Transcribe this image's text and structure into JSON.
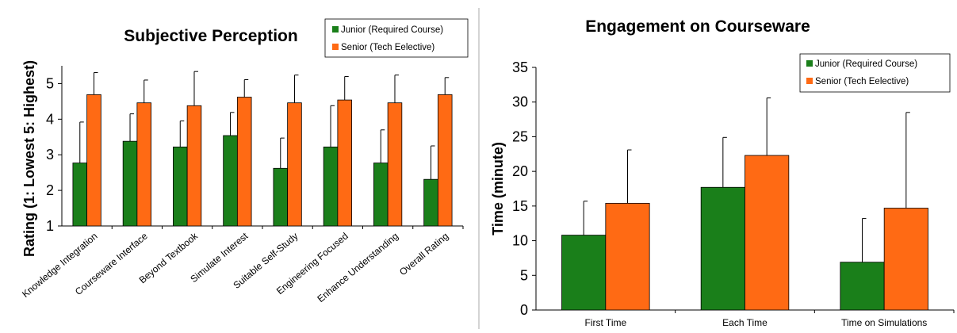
{
  "colors": {
    "junior": "#1a7f1a",
    "senior": "#ff6a14",
    "divider": "#aaaaaa"
  },
  "chart_data": [
    {
      "type": "bar",
      "title": "Subjective Perception",
      "ylabel": "Rating (1: Lowest 5: Highest)",
      "xlabel": "",
      "ylim": [
        1,
        5.5
      ],
      "yticks": [
        1,
        2,
        3,
        4,
        5
      ],
      "legend": "top-right",
      "categories": [
        "Knowledge Integration",
        "Courseware Interface",
        "Beyond Textbook",
        "Simulate Interest",
        "Suitable Self-Study",
        "Engineering Focused",
        "Enhance Understanding",
        "Overall Rating"
      ],
      "series": [
        {
          "name": "Junior (Required Course)",
          "values": [
            2.77,
            3.38,
            3.22,
            3.54,
            2.62,
            3.22,
            2.77,
            2.31
          ],
          "error": [
            1.15,
            0.77,
            0.73,
            0.65,
            0.85,
            1.16,
            0.93,
            0.94
          ]
        },
        {
          "name": "Senior (Tech Eelective)",
          "values": [
            4.69,
            4.46,
            4.38,
            4.62,
            4.46,
            4.54,
            4.46,
            4.69
          ],
          "error": [
            0.62,
            0.64,
            0.96,
            0.49,
            0.78,
            0.66,
            0.78,
            0.48
          ]
        }
      ]
    },
    {
      "type": "bar",
      "title": "Engagement on Courseware",
      "ylabel": "Time (minute)",
      "xlabel": "",
      "ylim": [
        0,
        35
      ],
      "yticks": [
        0,
        5,
        10,
        15,
        20,
        25,
        30,
        35
      ],
      "legend": "top-right",
      "categories": [
        "First Time",
        "Each Time",
        "Time on Simulations"
      ],
      "series": [
        {
          "name": "Junior (Required Course)",
          "values": [
            10.8,
            17.7,
            6.9
          ],
          "error": [
            4.9,
            7.2,
            6.3
          ]
        },
        {
          "name": "Senior (Tech Eelective)",
          "values": [
            15.4,
            22.3,
            14.7
          ],
          "error": [
            7.7,
            8.3,
            13.8
          ]
        }
      ]
    }
  ]
}
